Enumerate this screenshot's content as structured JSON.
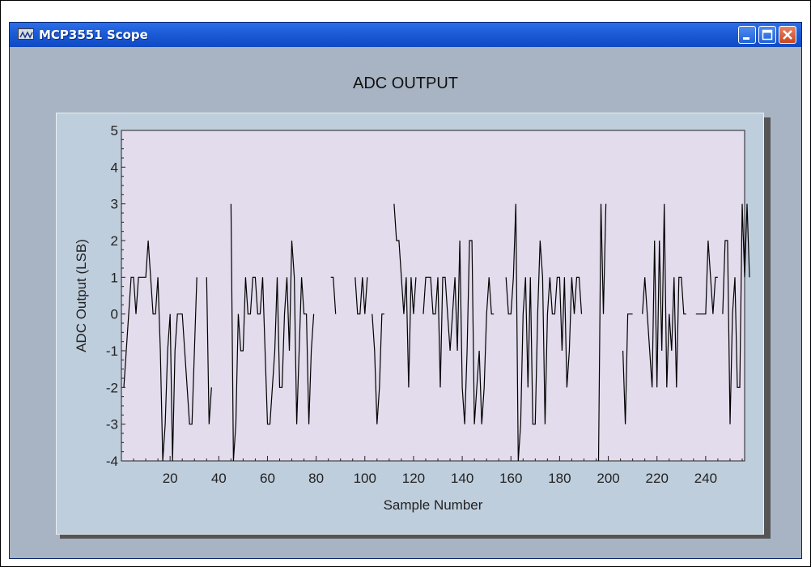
{
  "window": {
    "title": "MCP3551 Scope",
    "buttons": {
      "minimize": "minimize",
      "maximize": "maximize",
      "close": "close"
    }
  },
  "colors": {
    "plot_background": "#e2dcec",
    "panel_background": "#bfcedd",
    "window_background": "#a8b4c3",
    "trace": "#000000"
  },
  "chart_data": {
    "type": "line",
    "title": "ADC OUTPUT",
    "xlabel": "Sample Number",
    "ylabel": "ADC Output (LSB)",
    "xlim": [
      0,
      256
    ],
    "ylim": [
      -4,
      5
    ],
    "xticks": [
      20,
      40,
      60,
      80,
      100,
      120,
      140,
      160,
      180,
      200,
      220,
      240
    ],
    "yticks": [
      -4,
      -3,
      -2,
      -1,
      0,
      1,
      2,
      3,
      4,
      5
    ],
    "grid": false,
    "series": [
      {
        "values": [
          -2,
          -1,
          0,
          1,
          1,
          0,
          1,
          1,
          1,
          1,
          2,
          1,
          0,
          0,
          1,
          -1,
          -4,
          -3,
          -1,
          0,
          -4,
          -1,
          0,
          0,
          0,
          -1,
          -2,
          -3,
          -3,
          -1,
          1,
          null,
          null,
          null,
          1,
          -3,
          -2,
          null,
          null,
          null,
          null,
          null,
          null,
          null,
          3,
          -4,
          -3,
          0,
          -1,
          -1,
          1,
          0,
          0,
          1,
          1,
          0,
          0,
          1,
          -1,
          -3,
          -3,
          -2,
          -1,
          1,
          -2,
          -2,
          0,
          1,
          -1,
          2,
          1,
          -3,
          -1,
          1,
          0,
          0,
          -3,
          -1,
          0,
          null,
          null,
          null,
          null,
          null,
          null,
          1,
          1,
          0,
          null,
          null,
          1,
          null,
          1,
          null,
          null,
          1,
          0,
          0,
          1,
          0,
          1,
          null,
          0,
          -1,
          -3,
          -2,
          0,
          0,
          null,
          null,
          null,
          3,
          2,
          2,
          1,
          0,
          1,
          -2,
          1,
          0,
          1,
          null,
          null,
          0,
          1,
          1,
          1,
          0,
          0,
          1,
          -2,
          1,
          1,
          0,
          -1,
          0,
          1,
          -1,
          2,
          -2,
          -3,
          -1,
          2,
          2,
          -3,
          -2,
          -1,
          -3,
          -2,
          0,
          1,
          0,
          0,
          null,
          null,
          null,
          null,
          1,
          0,
          0,
          1,
          3,
          -4,
          -3,
          0,
          1,
          -2,
          1,
          -3,
          -3,
          0,
          2,
          1,
          -3,
          0,
          1,
          0,
          0,
          1,
          1,
          -1,
          1,
          -2,
          -1,
          1,
          0,
          1,
          1,
          0,
          null,
          null,
          null,
          null,
          null,
          null,
          -4,
          3,
          0,
          3,
          null,
          null,
          null,
          null,
          null,
          null,
          -1,
          -3,
          0,
          0,
          0,
          null,
          null,
          null,
          0,
          1,
          0,
          -1,
          -2,
          2,
          -2,
          2,
          -1,
          3,
          -2,
          0,
          -1,
          1,
          -2,
          1,
          1,
          0,
          0,
          null,
          null,
          null,
          0,
          0,
          0,
          0,
          0,
          2,
          1,
          0,
          1,
          1,
          null,
          0,
          2,
          2,
          -3,
          0,
          1,
          -2,
          -2,
          3,
          1,
          3,
          1
        ]
      }
    ]
  }
}
